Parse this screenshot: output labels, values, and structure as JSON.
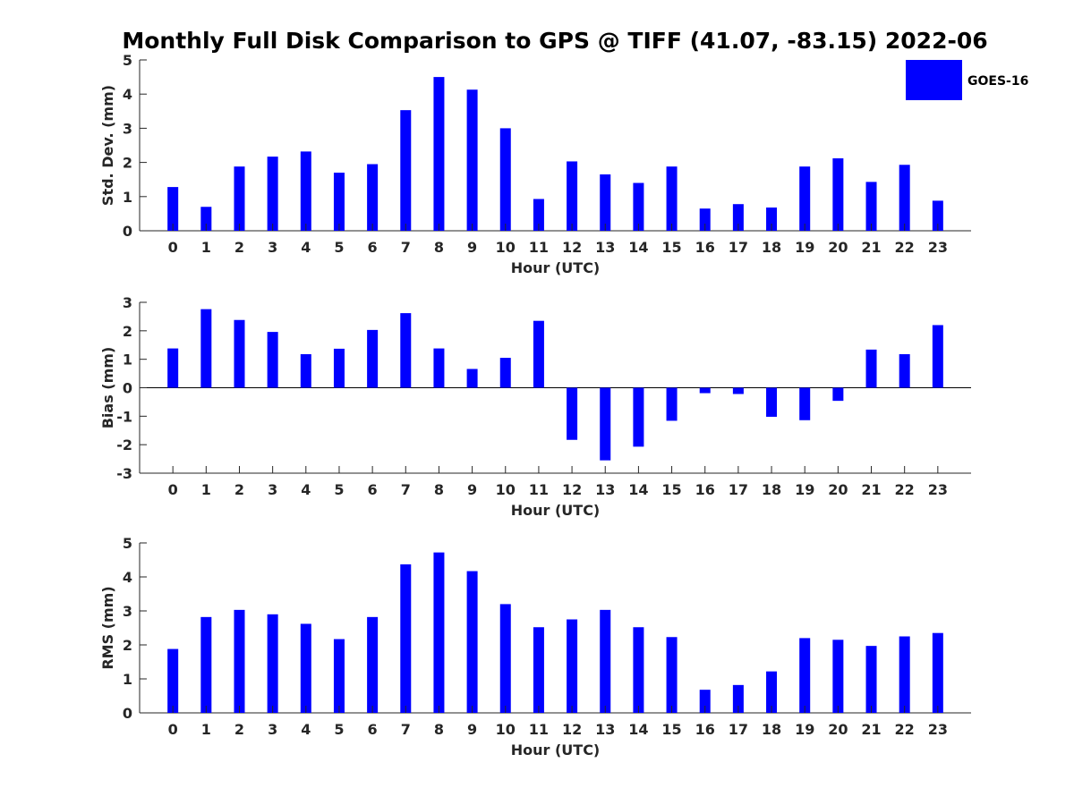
{
  "title": "Monthly Full Disk Comparison to GPS @ TIFF (41.07, -83.15) 2022-06",
  "legend": {
    "label": "GOES-16",
    "color": "#0000ff",
    "placement": "top-right"
  },
  "chart_data": [
    {
      "type": "bar",
      "xlabel": "Hour (UTC)",
      "ylabel": "Std. Dev. (mm)",
      "ylim": [
        0,
        5
      ],
      "yticks": [
        0,
        1,
        2,
        3,
        4,
        5
      ],
      "categories": [
        "0",
        "1",
        "2",
        "3",
        "4",
        "5",
        "6",
        "7",
        "8",
        "9",
        "10",
        "11",
        "12",
        "13",
        "14",
        "15",
        "16",
        "17",
        "18",
        "19",
        "20",
        "21",
        "22",
        "23"
      ],
      "series": [
        {
          "name": "GOES-16",
          "color": "#0000ff",
          "values": [
            1.28,
            0.7,
            1.88,
            2.17,
            2.32,
            1.7,
            1.95,
            3.53,
            4.5,
            4.13,
            3.0,
            0.93,
            2.03,
            1.65,
            1.4,
            1.88,
            0.65,
            0.78,
            0.68,
            1.88,
            2.12,
            1.43,
            1.93,
            0.88
          ]
        }
      ]
    },
    {
      "type": "bar",
      "xlabel": "Hour (UTC)",
      "ylabel": "Bias (mm)",
      "ylim": [
        -3,
        3
      ],
      "yticks": [
        -3,
        -2,
        -1,
        0,
        1,
        2,
        3
      ],
      "categories": [
        "0",
        "1",
        "2",
        "3",
        "4",
        "5",
        "6",
        "7",
        "8",
        "9",
        "10",
        "11",
        "12",
        "13",
        "14",
        "15",
        "16",
        "17",
        "18",
        "19",
        "20",
        "21",
        "22",
        "23"
      ],
      "series": [
        {
          "name": "GOES-16",
          "color": "#0000ff",
          "values": [
            1.38,
            2.76,
            2.38,
            1.96,
            1.18,
            1.37,
            2.03,
            2.62,
            1.38,
            0.66,
            1.05,
            2.35,
            -1.83,
            -2.55,
            -2.07,
            -1.16,
            -0.19,
            -0.22,
            -1.02,
            -1.14,
            -0.46,
            1.34,
            1.18,
            2.2
          ]
        }
      ]
    },
    {
      "type": "bar",
      "xlabel": "Hour (UTC)",
      "ylabel": "RMS (mm)",
      "ylim": [
        0,
        5
      ],
      "yticks": [
        0,
        1,
        2,
        3,
        4,
        5
      ],
      "categories": [
        "0",
        "1",
        "2",
        "3",
        "4",
        "5",
        "6",
        "7",
        "8",
        "9",
        "10",
        "11",
        "12",
        "13",
        "14",
        "15",
        "16",
        "17",
        "18",
        "19",
        "20",
        "21",
        "22",
        "23"
      ],
      "series": [
        {
          "name": "GOES-16",
          "color": "#0000ff",
          "values": [
            1.88,
            2.82,
            3.03,
            2.9,
            2.62,
            2.17,
            2.82,
            4.37,
            4.72,
            4.17,
            3.2,
            2.52,
            2.75,
            3.03,
            2.52,
            2.23,
            0.68,
            0.82,
            1.22,
            2.2,
            2.15,
            1.97,
            2.25,
            2.35
          ]
        }
      ]
    }
  ]
}
